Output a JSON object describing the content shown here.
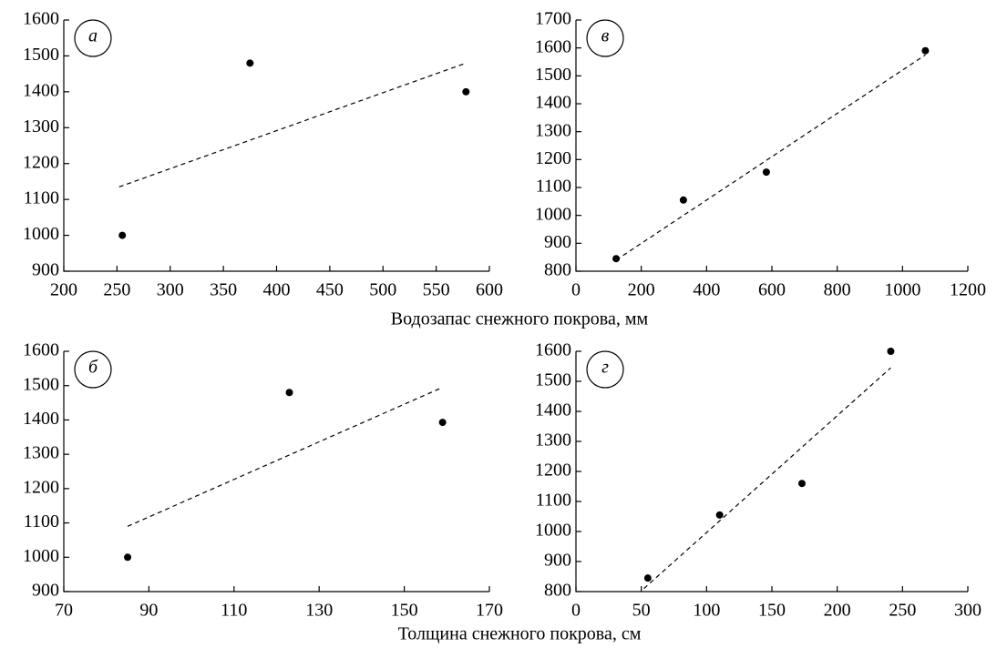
{
  "chart_data": [
    {
      "type": "scatter",
      "label": "а",
      "color": "#000000",
      "x": [
        255,
        375,
        578
      ],
      "values": [
        1000,
        1480,
        1400
      ],
      "trend": {
        "x": [
          252,
          578
        ],
        "values": [
          1135,
          1480
        ]
      },
      "xlim": [
        200,
        600
      ],
      "xticks": [
        200,
        250,
        300,
        350,
        400,
        450,
        500,
        550,
        600
      ],
      "ylim": [
        900,
        1600
      ],
      "yticks": [
        900,
        1000,
        1100,
        1200,
        1300,
        1400,
        1500,
        1600
      ]
    },
    {
      "type": "scatter",
      "label": "в",
      "color": "#000000",
      "x": [
        123,
        329,
        583,
        1070
      ],
      "values": [
        845,
        1055,
        1155,
        1590
      ],
      "trend": {
        "x": [
          123,
          1070
        ],
        "values": [
          840,
          1575
        ]
      },
      "xlim": [
        0,
        1200
      ],
      "xticks": [
        0,
        200,
        400,
        600,
        800,
        1000,
        1200
      ],
      "ylim": [
        800,
        1700
      ],
      "yticks": [
        800,
        900,
        1000,
        1100,
        1200,
        1300,
        1400,
        1500,
        1600,
        1700
      ]
    },
    {
      "type": "scatter",
      "label": "б",
      "color": "#000000",
      "x": [
        85,
        123,
        159
      ],
      "values": [
        1000,
        1480,
        1393
      ],
      "trend": {
        "x": [
          85,
          159
        ],
        "values": [
          1090,
          1495
        ]
      },
      "xlim": [
        70,
        170
      ],
      "xticks": [
        70,
        90,
        110,
        130,
        150,
        170
      ],
      "ylim": [
        900,
        1600
      ],
      "yticks": [
        900,
        1000,
        1100,
        1200,
        1300,
        1400,
        1500,
        1600
      ]
    },
    {
      "type": "scatter",
      "label": "г",
      "color": "#000000",
      "x": [
        55,
        110,
        173,
        241
      ],
      "values": [
        845,
        1055,
        1160,
        1600
      ],
      "trend": {
        "x": [
          52,
          241
        ],
        "values": [
          810,
          1545
        ]
      },
      "xlim": [
        0,
        300
      ],
      "xticks": [
        0,
        50,
        100,
        150,
        200,
        250,
        300
      ],
      "ylim": [
        800,
        1600
      ],
      "yticks": [
        800,
        900,
        1000,
        1100,
        1200,
        1300,
        1400,
        1500,
        1600
      ]
    }
  ],
  "row_labels": [
    "Водозапас снежного покрова, мм",
    "Толщина снежного покрова, см"
  ]
}
